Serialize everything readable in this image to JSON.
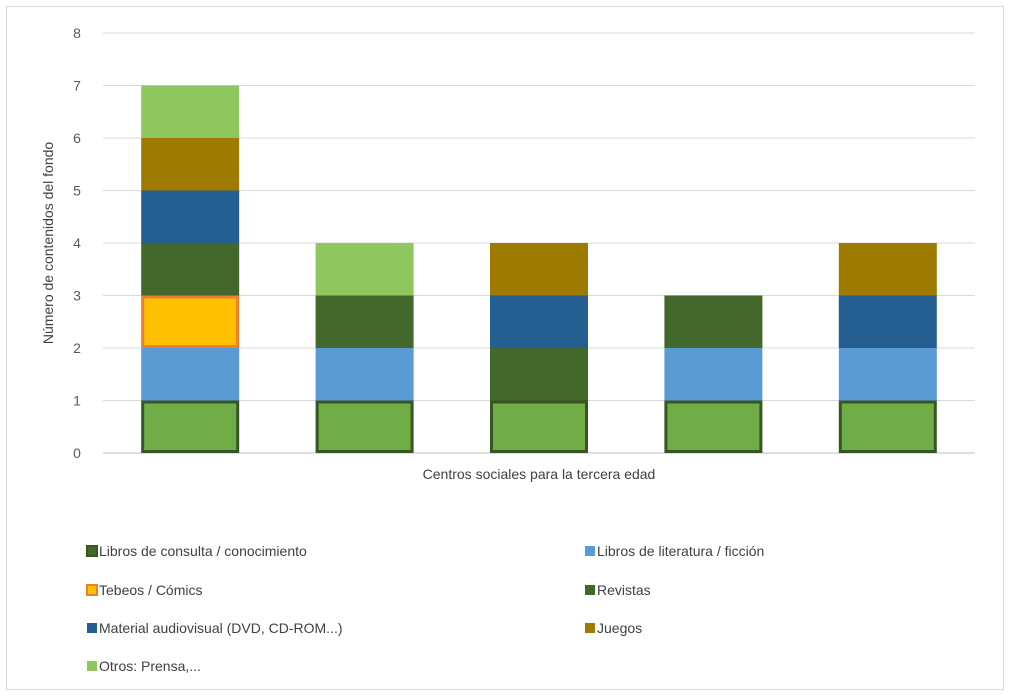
{
  "chart_data": {
    "type": "bar",
    "stacked": true,
    "xlabel": "Centros sociales para la tercera edad",
    "ylabel": "Número de contenidos del fondo",
    "ylim": [
      0,
      8
    ],
    "yticks": [
      "0",
      "1",
      "2",
      "3",
      "4",
      "5",
      "6",
      "7",
      "8"
    ],
    "grid": true,
    "legend_position": "bottom",
    "categories": [
      "",
      "",
      "",
      "",
      ""
    ],
    "series": [
      {
        "name": "Libros de consulta / conocimiento",
        "color": "#70ad47",
        "border": "#375623",
        "values": [
          1,
          1,
          1,
          1,
          1
        ]
      },
      {
        "name": "Libros de literatura / ficción",
        "color": "#5b9bd5",
        "values": [
          1,
          1,
          0,
          1,
          1
        ]
      },
      {
        "name": "Tebeos / Cómics",
        "color": "#ffc000",
        "border": "#ed7d31",
        "values": [
          1,
          0,
          0,
          0,
          0
        ]
      },
      {
        "name": "Revistas",
        "color": "#43682b",
        "values": [
          1,
          1,
          1,
          1,
          0
        ]
      },
      {
        "name": "Material audiovisual (DVD, CD-ROM...)",
        "color": "#255e91",
        "values": [
          1,
          0,
          1,
          0,
          1
        ]
      },
      {
        "name": "Juegos",
        "color": "#9e7a00",
        "values": [
          1,
          0,
          1,
          0,
          1
        ]
      },
      {
        "name": "Otros: Prensa,...",
        "color": "#8fc65e",
        "values": [
          1,
          1,
          0,
          0,
          0
        ]
      }
    ],
    "legend_swatch_colors": [
      "#43682b",
      "#5b9bd5",
      "#ffc000",
      "#43682b",
      "#255e91",
      "#9e7a00",
      "#8fc65e"
    ]
  }
}
